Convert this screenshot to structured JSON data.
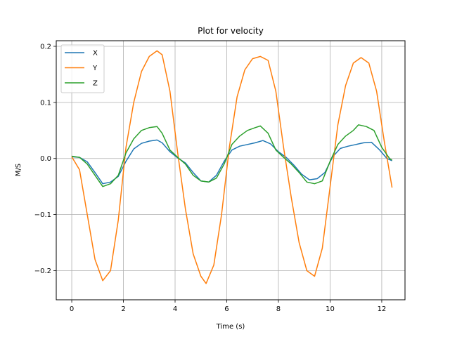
{
  "chart_data": {
    "type": "line",
    "title": "Plot for velocity",
    "xlabel": "Time (s)",
    "ylabel": "M/S",
    "xlim": [
      -0.6,
      12.9
    ],
    "ylim": [
      -0.252,
      0.21
    ],
    "xticks": [
      0,
      2,
      4,
      6,
      8,
      10,
      12
    ],
    "xtick_labels": [
      "0",
      "2",
      "4",
      "6",
      "8",
      "10",
      "12"
    ],
    "yticks": [
      -0.2,
      -0.1,
      0.0,
      0.1,
      0.2
    ],
    "ytick_labels": [
      "−0.2",
      "−0.1",
      "0.0",
      "0.1",
      "0.2"
    ],
    "grid": true,
    "legend_position": "top-left",
    "series": [
      {
        "name": "X",
        "color": "#1f77b4",
        "x": [
          0,
          0.3,
          0.6,
          0.9,
          1.2,
          1.5,
          1.8,
          2.1,
          2.4,
          2.7,
          3.0,
          3.3,
          3.5,
          3.8,
          4.1,
          4.4,
          4.7,
          5.0,
          5.3,
          5.6,
          5.9,
          6.2,
          6.5,
          6.8,
          7.1,
          7.4,
          7.7,
          8.0,
          8.3,
          8.6,
          8.9,
          9.2,
          9.5,
          9.8,
          10.1,
          10.4,
          10.7,
          11.0,
          11.3,
          11.6,
          11.9,
          12.2,
          12.4
        ],
        "values": [
          0.003,
          0.002,
          -0.006,
          -0.025,
          -0.045,
          -0.042,
          -0.032,
          -0.005,
          0.017,
          0.027,
          0.031,
          0.033,
          0.028,
          0.012,
          0.001,
          -0.008,
          -0.025,
          -0.04,
          -0.042,
          -0.03,
          -0.005,
          0.015,
          0.022,
          0.025,
          0.028,
          0.032,
          0.026,
          0.012,
          0.002,
          -0.012,
          -0.028,
          -0.038,
          -0.036,
          -0.025,
          0.003,
          0.018,
          0.022,
          0.025,
          0.028,
          0.029,
          0.016,
          0.0,
          -0.004
        ]
      },
      {
        "name": "Y",
        "color": "#ff7f0e",
        "x": [
          0,
          0.3,
          0.6,
          0.9,
          1.2,
          1.5,
          1.8,
          2.1,
          2.4,
          2.7,
          3.0,
          3.3,
          3.5,
          3.8,
          4.1,
          4.4,
          4.7,
          5.0,
          5.2,
          5.5,
          5.8,
          6.1,
          6.4,
          6.7,
          7.0,
          7.3,
          7.6,
          7.9,
          8.2,
          8.5,
          8.8,
          9.1,
          9.4,
          9.7,
          10.0,
          10.3,
          10.6,
          10.9,
          11.2,
          11.5,
          11.8,
          12.1,
          12.4
        ],
        "values": [
          0.003,
          -0.02,
          -0.1,
          -0.18,
          -0.218,
          -0.2,
          -0.11,
          0.02,
          0.1,
          0.155,
          0.182,
          0.192,
          0.185,
          0.12,
          0.01,
          -0.09,
          -0.17,
          -0.21,
          -0.223,
          -0.19,
          -0.1,
          0.02,
          0.11,
          0.158,
          0.178,
          0.182,
          0.175,
          0.12,
          0.02,
          -0.07,
          -0.15,
          -0.2,
          -0.21,
          -0.16,
          -0.05,
          0.06,
          0.13,
          0.17,
          0.18,
          0.17,
          0.12,
          0.03,
          -0.052
        ]
      },
      {
        "name": "Z",
        "color": "#2ca02c",
        "x": [
          0,
          0.3,
          0.6,
          0.9,
          1.2,
          1.5,
          1.8,
          2.1,
          2.4,
          2.7,
          3.0,
          3.3,
          3.5,
          3.8,
          4.1,
          4.4,
          4.7,
          5.0,
          5.3,
          5.6,
          5.9,
          6.2,
          6.5,
          6.8,
          7.1,
          7.3,
          7.6,
          7.9,
          8.2,
          8.5,
          8.8,
          9.1,
          9.4,
          9.7,
          10.0,
          10.3,
          10.6,
          10.9,
          11.1,
          11.4,
          11.7,
          12.0,
          12.3,
          12.4
        ],
        "values": [
          0.004,
          0.002,
          -0.01,
          -0.03,
          -0.05,
          -0.045,
          -0.03,
          0.01,
          0.035,
          0.05,
          0.055,
          0.057,
          0.045,
          0.015,
          0.002,
          -0.01,
          -0.03,
          -0.04,
          -0.042,
          -0.035,
          -0.01,
          0.025,
          0.04,
          0.05,
          0.055,
          0.058,
          0.045,
          0.015,
          0.002,
          -0.01,
          -0.025,
          -0.042,
          -0.045,
          -0.04,
          -0.005,
          0.025,
          0.04,
          0.05,
          0.06,
          0.057,
          0.05,
          0.02,
          0.0,
          -0.003
        ]
      }
    ]
  }
}
